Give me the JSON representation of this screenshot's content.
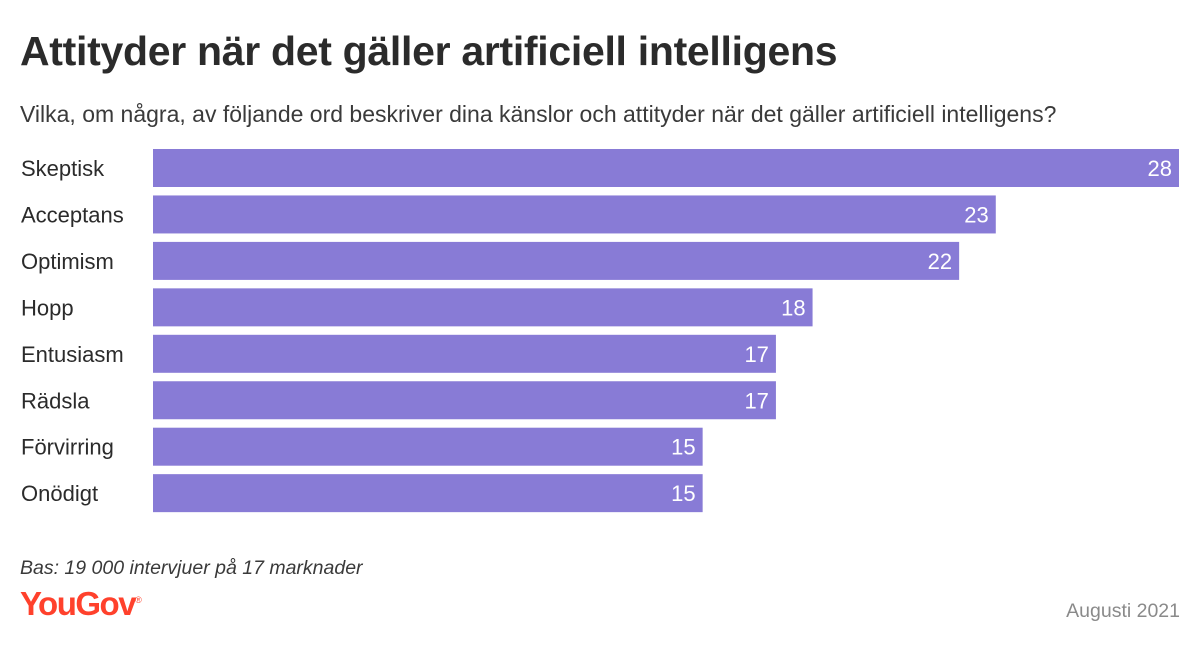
{
  "title": "Attityder när det gäller artificiell intelligens",
  "subtitle": "Vilka, om några, av följande ord beskriver dina känslor och attityder när det gäller artificiell intelligens?",
  "footnote": "Bas: 19 000 intervjuer på 17 marknader",
  "logo": {
    "text": "YouGov",
    "reg": "®"
  },
  "date": "Augusti 2021",
  "colors": {
    "bar": "#887bd6",
    "bar_label": "#ffffff",
    "category_text": "#2b2b2b",
    "brand": "#ff412c"
  },
  "chart_data": {
    "type": "bar",
    "orientation": "horizontal",
    "title": "Attityder när det gäller artificiell intelligens",
    "xlabel": "",
    "ylabel": "",
    "xlim": [
      0,
      28
    ],
    "grid": false,
    "categories": [
      "Skeptisk",
      "Acceptans",
      "Optimism",
      "Hopp",
      "Entusiasm",
      "Rädsla",
      "Förvirring",
      "Onödigt"
    ],
    "values": [
      28,
      23,
      22,
      18,
      17,
      17,
      15,
      15
    ]
  }
}
